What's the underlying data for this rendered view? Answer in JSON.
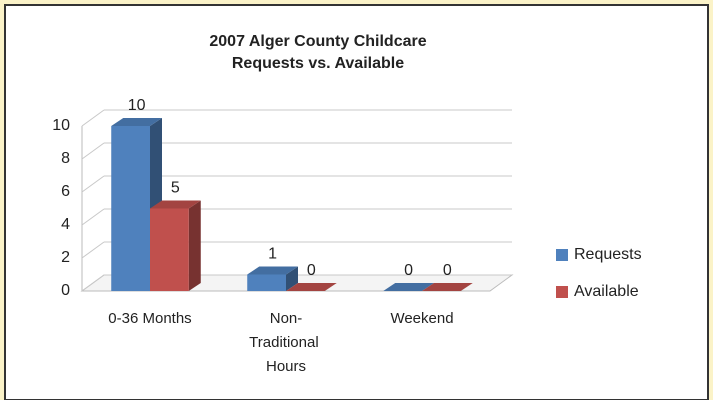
{
  "chart_data": {
    "type": "bar3d",
    "title": [
      "2007 Alger County Childcare",
      "Requests vs. Available"
    ],
    "categories": [
      "0-36 Months",
      "Non-Traditional Hours",
      "Weekend"
    ],
    "series": [
      {
        "name": "Requests",
        "color": "#4f81bd",
        "values": [
          10,
          1,
          0
        ]
      },
      {
        "name": "Available",
        "color": "#c0504d",
        "values": [
          5,
          0,
          0
        ]
      }
    ],
    "ylim": [
      0,
      10
    ],
    "yticks": [
      0,
      2,
      4,
      6,
      8,
      10
    ],
    "grid": true,
    "legend": "right"
  }
}
